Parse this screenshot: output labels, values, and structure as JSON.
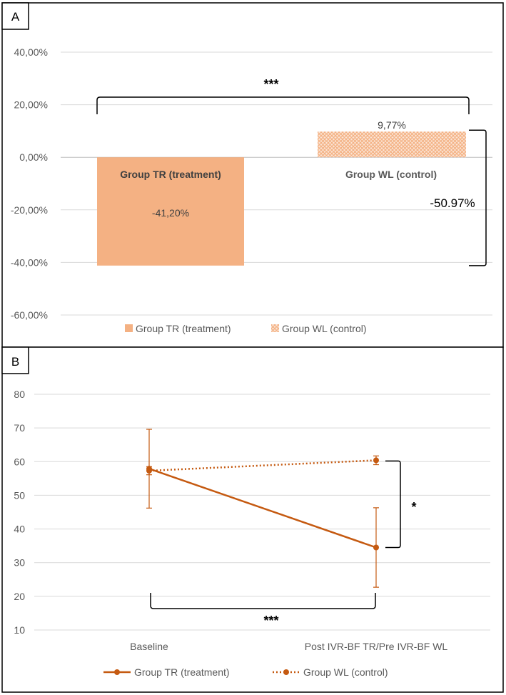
{
  "colors": {
    "tr": "#f4b183",
    "line": "#c55a11",
    "wl_fill": "#fbe5d6",
    "grid": "#d9d9d9",
    "axis_text": "#595959",
    "bar_label": "#404040",
    "frame": "#000000"
  },
  "chart_data": [
    {
      "panel": "A",
      "type": "bar",
      "categories": [
        "Group TR (treatment)",
        "Group WL (control)"
      ],
      "values": [
        -41.2,
        9.77
      ],
      "value_labels": [
        "-41,20%",
        "9,77%"
      ],
      "ylim": [
        -60,
        40
      ],
      "yticks": [
        {
          "v": 40,
          "label": "40,00%"
        },
        {
          "v": 20,
          "label": "20,00%"
        },
        {
          "v": 0,
          "label": "0,00%"
        },
        {
          "v": -20,
          "label": "-20,00%"
        },
        {
          "v": -40,
          "label": "-40,00%"
        },
        {
          "v": -60,
          "label": "-60,00%"
        }
      ],
      "gridlines": true,
      "significance": "***",
      "difference_label": "-50.97%",
      "legend": [
        {
          "name": "Group TR (treatment)",
          "style": "solid"
        },
        {
          "name": "Group WL (control)",
          "style": "pattern"
        }
      ],
      "legend_position": "bottom"
    },
    {
      "panel": "B",
      "type": "line",
      "categories": [
        "Baseline",
        "Post IVR-BF TR/Pre IVR-BF WL"
      ],
      "ylim": [
        10,
        80
      ],
      "yticks": [
        {
          "v": 80,
          "label": "80"
        },
        {
          "v": 70,
          "label": "70"
        },
        {
          "v": 60,
          "label": "60"
        },
        {
          "v": 50,
          "label": "50"
        },
        {
          "v": 40,
          "label": "40"
        },
        {
          "v": 30,
          "label": "30"
        },
        {
          "v": 20,
          "label": "20"
        },
        {
          "v": 10,
          "label": "10"
        }
      ],
      "gridlines": true,
      "series": [
        {
          "name": "Group TR (treatment)",
          "style": "solid",
          "values": [
            57.9,
            34.5
          ],
          "error": [
            11.7,
            11.8
          ]
        },
        {
          "name": "Group WL (control)",
          "style": "dotted",
          "values": [
            57.3,
            60.4
          ],
          "error": [
            1.2,
            1.3
          ]
        }
      ],
      "significance_between": "*",
      "significance_within": "***",
      "legend_position": "bottom"
    }
  ]
}
